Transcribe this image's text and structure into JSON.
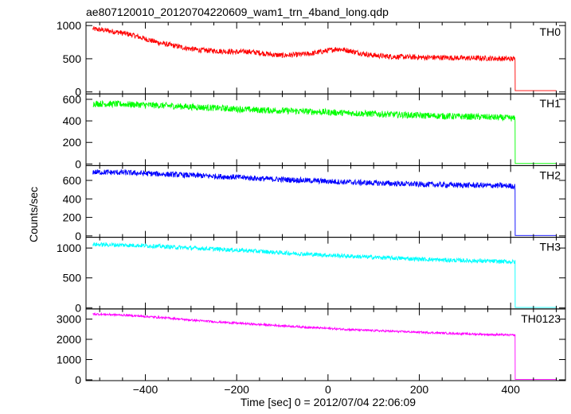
{
  "chart_data": {
    "type": "line",
    "title": "ae807120010_20120704220609_wam1_trn_4band_long.qdp",
    "xlabel": "Time [sec] 0 = 2012/07/04 22:06:09",
    "ylabel": "Counts/sec",
    "xlim": [
      -530,
      520
    ],
    "x_ticks": [
      -400,
      -200,
      0,
      200,
      400
    ],
    "x_tick_labels": [
      "−400",
      "−200",
      "0",
      "200",
      "400"
    ],
    "panels": [
      {
        "name": "TH0",
        "color": "#ff0000",
        "ylim": [
          -30,
          1050
        ],
        "y_ticks": [
          0,
          500,
          1000
        ],
        "y_tick_labels": [
          "0",
          "500",
          "1000"
        ],
        "noise": 40,
        "x": [
          -515,
          -490,
          -460,
          -430,
          -400,
          -370,
          -340,
          -310,
          -280,
          -250,
          -220,
          -200,
          -180,
          -150,
          -120,
          -100,
          -70,
          -40,
          -10,
          20,
          40,
          60,
          90,
          120,
          150,
          180,
          210,
          240,
          270,
          300,
          330,
          360,
          390,
          410,
          412,
          500
        ],
        "y": [
          950,
          930,
          900,
          860,
          800,
          740,
          700,
          660,
          630,
          620,
          610,
          600,
          610,
          590,
          560,
          550,
          560,
          575,
          610,
          650,
          630,
          600,
          560,
          540,
          530,
          525,
          520,
          520,
          515,
          510,
          510,
          505,
          500,
          495,
          20,
          20
        ]
      },
      {
        "name": "TH1",
        "color": "#00ff00",
        "ylim": [
          -15,
          650
        ],
        "y_ticks": [
          0,
          200,
          400,
          600
        ],
        "y_tick_labels": [
          "0",
          "200",
          "400",
          "600"
        ],
        "noise": 30,
        "x": [
          -515,
          -450,
          -400,
          -350,
          -300,
          -250,
          -200,
          -150,
          -100,
          -50,
          0,
          50,
          100,
          150,
          200,
          250,
          300,
          350,
          400,
          410,
          412,
          500
        ],
        "y": [
          560,
          555,
          548,
          540,
          530,
          520,
          510,
          500,
          495,
          488,
          480,
          472,
          465,
          458,
          450,
          445,
          440,
          435,
          425,
          420,
          5,
          5
        ]
      },
      {
        "name": "TH2",
        "color": "#0000ff",
        "ylim": [
          -15,
          760
        ],
        "y_ticks": [
          0,
          200,
          400,
          600
        ],
        "y_tick_labels": [
          "0",
          "200",
          "400",
          "600"
        ],
        "noise": 30,
        "x": [
          -515,
          -450,
          -400,
          -350,
          -300,
          -250,
          -200,
          -150,
          -100,
          -50,
          0,
          50,
          100,
          150,
          200,
          250,
          300,
          350,
          400,
          410,
          412,
          500
        ],
        "y": [
          690,
          685,
          675,
          665,
          655,
          645,
          635,
          620,
          610,
          600,
          590,
          580,
          572,
          565,
          558,
          552,
          548,
          545,
          540,
          535,
          5,
          5
        ]
      },
      {
        "name": "TH3",
        "color": "#00ffff",
        "ylim": [
          -20,
          1180
        ],
        "y_ticks": [
          0,
          500,
          1000
        ],
        "y_tick_labels": [
          "0",
          "500",
          "1000"
        ],
        "noise": 35,
        "x": [
          -515,
          -450,
          -400,
          -350,
          -300,
          -250,
          -200,
          -150,
          -100,
          -50,
          0,
          50,
          100,
          150,
          200,
          250,
          300,
          350,
          400,
          410,
          412,
          500
        ],
        "y": [
          1060,
          1050,
          1040,
          1020,
          1000,
          985,
          965,
          945,
          920,
          900,
          880,
          862,
          845,
          830,
          815,
          800,
          790,
          780,
          770,
          765,
          5,
          5
        ]
      },
      {
        "name": "TH0123",
        "color": "#ff00ff",
        "ylim": [
          -40,
          3500
        ],
        "y_ticks": [
          0,
          1000,
          2000,
          3000
        ],
        "y_tick_labels": [
          "0",
          "1000",
          "2000",
          "3000"
        ],
        "noise": 50,
        "x": [
          -515,
          -450,
          -400,
          -350,
          -300,
          -250,
          -200,
          -150,
          -100,
          -50,
          0,
          50,
          100,
          150,
          200,
          250,
          300,
          350,
          400,
          410,
          412,
          500
        ],
        "y": [
          3250,
          3200,
          3130,
          3050,
          2950,
          2870,
          2800,
          2730,
          2670,
          2600,
          2540,
          2480,
          2430,
          2390,
          2350,
          2310,
          2270,
          2240,
          2210,
          2200,
          20,
          20
        ]
      }
    ]
  }
}
